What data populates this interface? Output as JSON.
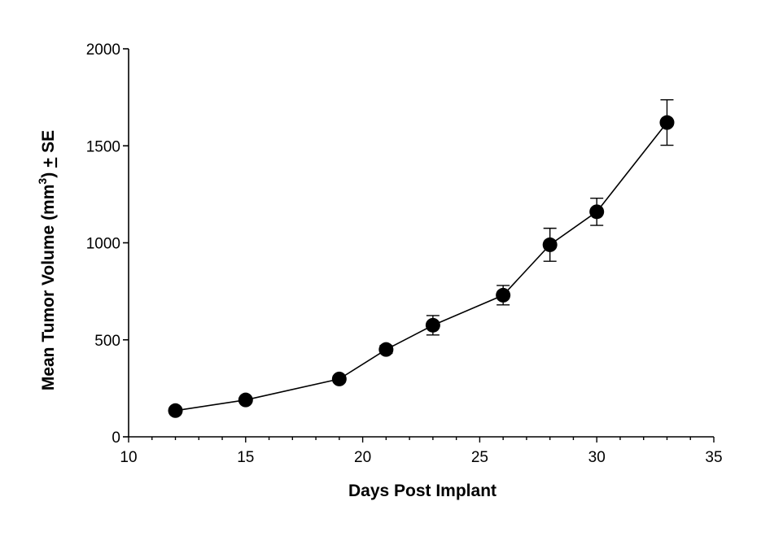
{
  "chart_data": {
    "type": "line",
    "title": "",
    "xlabel": "Days Post Implant",
    "ylabel": {
      "prefix": "Mean Tumor Volume (mm",
      "superscript": "3",
      "suffix": ") ",
      "pm": "+",
      "se": " SE"
    },
    "xlim": [
      10,
      35
    ],
    "ylim": [
      0,
      2000
    ],
    "xticks": [
      10,
      15,
      20,
      25,
      30,
      35
    ],
    "yticks": [
      0,
      500,
      1000,
      1500,
      2000
    ],
    "grid": false,
    "legend": "none",
    "series": [
      {
        "x": [
          12,
          15,
          19,
          21,
          23,
          26,
          28,
          30,
          33
        ],
        "y": [
          135,
          190,
          298,
          450,
          575,
          730,
          990,
          1160,
          1620
        ],
        "error": [
          8,
          10,
          15,
          20,
          50,
          50,
          85,
          70,
          117
        ]
      }
    ],
    "colors": {
      "line": "#000000",
      "marker": "#000000",
      "axis": "#000000"
    }
  }
}
